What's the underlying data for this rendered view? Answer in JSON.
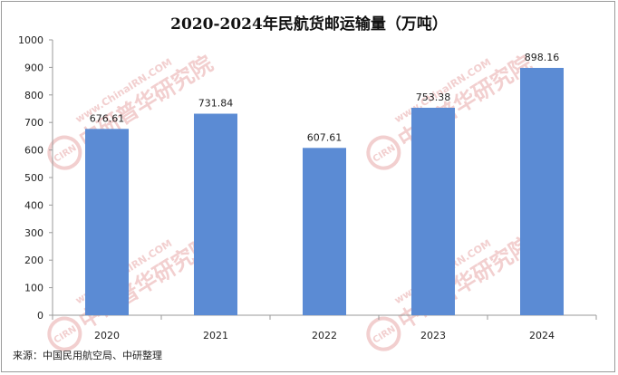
{
  "chart_data": {
    "type": "bar",
    "title": "2020-2024年民航货邮运输量（万吨）",
    "categories": [
      "2020",
      "2021",
      "2022",
      "2023",
      "2024"
    ],
    "values": [
      676.61,
      731.84,
      607.61,
      753.38,
      898.16
    ],
    "value_labels": [
      "676.61",
      "731.84",
      "607.61",
      "753.38",
      "898.16"
    ],
    "yticks": [
      "0",
      "100",
      "200",
      "300",
      "400",
      "500",
      "600",
      "700",
      "800",
      "900",
      "1000"
    ],
    "ylim": [
      0,
      1000
    ],
    "grid": false,
    "legend": "none",
    "bar_color": "#5B8BD4",
    "axis_color": "#9a9a9a"
  },
  "source_note": "来源：中国民用航空局、中研整理",
  "watermark": {
    "logo_text": "CIRN",
    "name": "中研普华研究院",
    "url": "www.ChinaIRN.COM",
    "color": "#e8a9a9"
  }
}
